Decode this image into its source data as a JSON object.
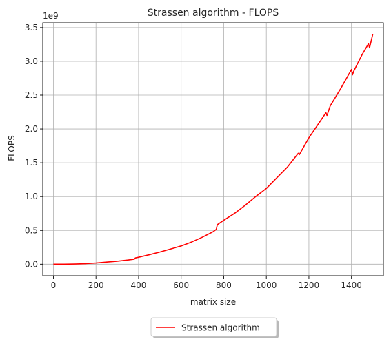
{
  "chart_data": {
    "type": "line",
    "title": "Strassen algorithm - FLOPS",
    "xlabel": "matrix size",
    "ylabel": "FLOPS",
    "y_offset_text": "1e9",
    "xlim": [
      -50,
      1550
    ],
    "ylim": [
      -0.17,
      3.57
    ],
    "x_ticks": [
      0,
      200,
      400,
      600,
      800,
      1000,
      1200,
      1400
    ],
    "x_tick_labels": [
      "0",
      "200",
      "400",
      "600",
      "800",
      "1000",
      "1200",
      "1400"
    ],
    "y_ticks": [
      0.0,
      0.5,
      1.0,
      1.5,
      2.0,
      2.5,
      3.0,
      3.5
    ],
    "y_tick_labels": [
      "0.0",
      "0.5",
      "1.0",
      "1.5",
      "2.0",
      "2.5",
      "3.0",
      "3.5"
    ],
    "grid": true,
    "legend_position": "bottom-center",
    "series": [
      {
        "name": "Strassen algorithm",
        "color": "#ff0000",
        "x": [
          0,
          50,
          100,
          150,
          200,
          250,
          300,
          350,
          380,
          385,
          400,
          450,
          500,
          550,
          600,
          650,
          700,
          750,
          765,
          770,
          800,
          850,
          900,
          950,
          1000,
          1050,
          1100,
          1150,
          1155,
          1200,
          1250,
          1280,
          1285,
          1300,
          1350,
          1400,
          1405,
          1410,
          1450,
          1480,
          1485,
          1500
        ],
        "y": [
          0.0,
          0.0,
          0.003,
          0.008,
          0.018,
          0.032,
          0.045,
          0.062,
          0.075,
          0.093,
          0.103,
          0.14,
          0.18,
          0.225,
          0.27,
          0.33,
          0.4,
          0.48,
          0.515,
          0.585,
          0.65,
          0.75,
          0.87,
          1.0,
          1.12,
          1.28,
          1.44,
          1.64,
          1.62,
          1.87,
          2.1,
          2.24,
          2.2,
          2.34,
          2.6,
          2.88,
          2.8,
          2.85,
          3.1,
          3.26,
          3.2,
          3.4
        ]
      }
    ]
  }
}
